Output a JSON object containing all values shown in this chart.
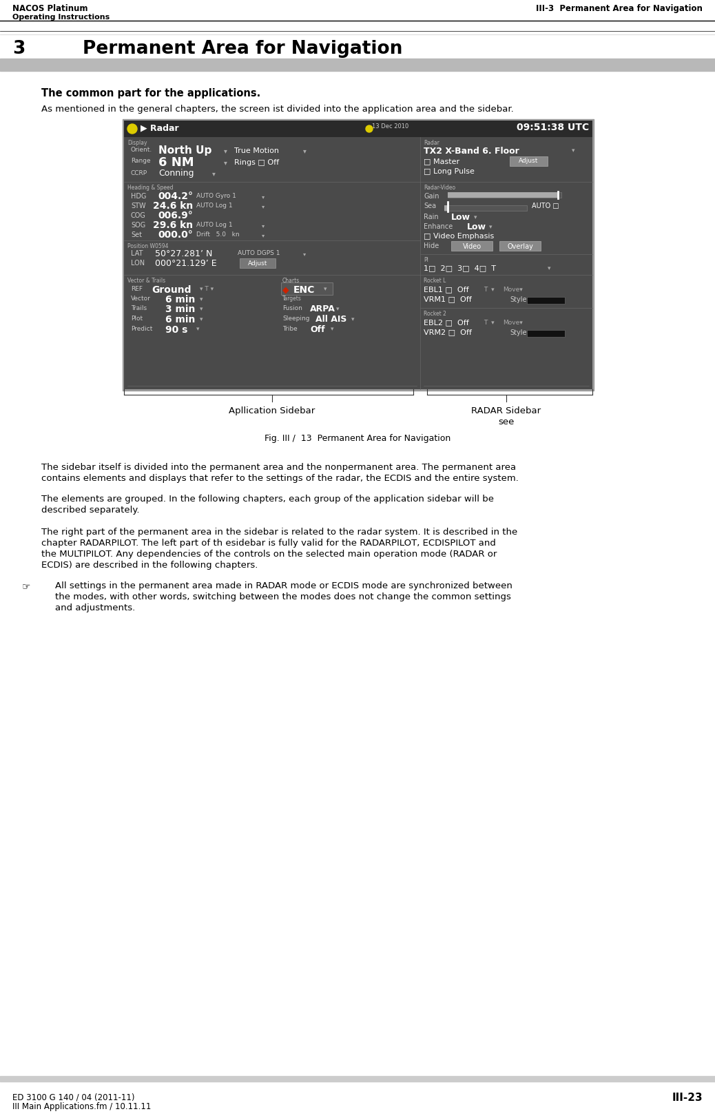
{
  "page_width": 10.38,
  "page_height": 16.2,
  "bg_color": "#ffffff",
  "header_left_top": "NACOS Platinum",
  "header_right_top": "III-3  Permanent Area for Navigation",
  "header_left_bottom": "Operating Instructions",
  "footer_left_top": "ED 3100 G 140 / 04 (2011-11)",
  "footer_right_top": "III-23",
  "footer_left_bottom": "III Main Applications.fm / 10.11.11",
  "chapter_number": "3",
  "chapter_title": "Permanent Area for Navigation",
  "subtitle": "The common part for the applications.",
  "para1": "As mentioned in the general chapters, the screen ist divided into the application area and the sidebar.",
  "para2a": "The sidebar itself is divided into the permanent area and the nonpermanent area. The permanent area",
  "para2b": "contains elements and displays that refer to the settings of the radar, the ECDIS and the entire system.",
  "para3a": "The elements are grouped. In the following chapters, each group of the application sidebar will be",
  "para3b": "described separately.",
  "para4a": "The right part of the permanent area in the sidebar is related to the radar system. It is described in the",
  "para4b": "chapter RADARPILOT. The left part of th esidebar is fully valid for the RADARPILOT, ECDISPILOT and",
  "para4c": "the MULTIPILOT. Any dependencies of the controls on the selected main operation mode (RADAR or",
  "para4d": "ECDIS) are described in the following chapters.",
  "note1": "All settings in the permanent area made in RADAR mode or ECDIS mode are synchronized between",
  "note2": "the modes, with other words, switching between the modes does not change the common settings",
  "note3": "and adjustments.",
  "fig_caption": "Fig. III /  13  Permanent Area for Navigation",
  "fig_label_left": "Apllication Sidebar",
  "fig_label_right1": "RADAR Sidebar",
  "fig_label_right2": "see",
  "gray_bar_color": "#b8b8b8",
  "header_line_color": "#000000",
  "img_bg": "#4a4a4a",
  "img_panel_bg": "#3a3a3a",
  "img_dark_panel": "#2e2e2e",
  "img_titlebar_bg": "#2a2a2a",
  "img_border": "#888888",
  "img_text_white": "#ffffff",
  "img_text_gray": "#aaaaaa",
  "img_text_small": "#999999",
  "img_accent": "#cc2200",
  "img_button_bg": "#888888",
  "img_slider_bg": "#666666",
  "img_slider_fill": "#aaaaaa"
}
